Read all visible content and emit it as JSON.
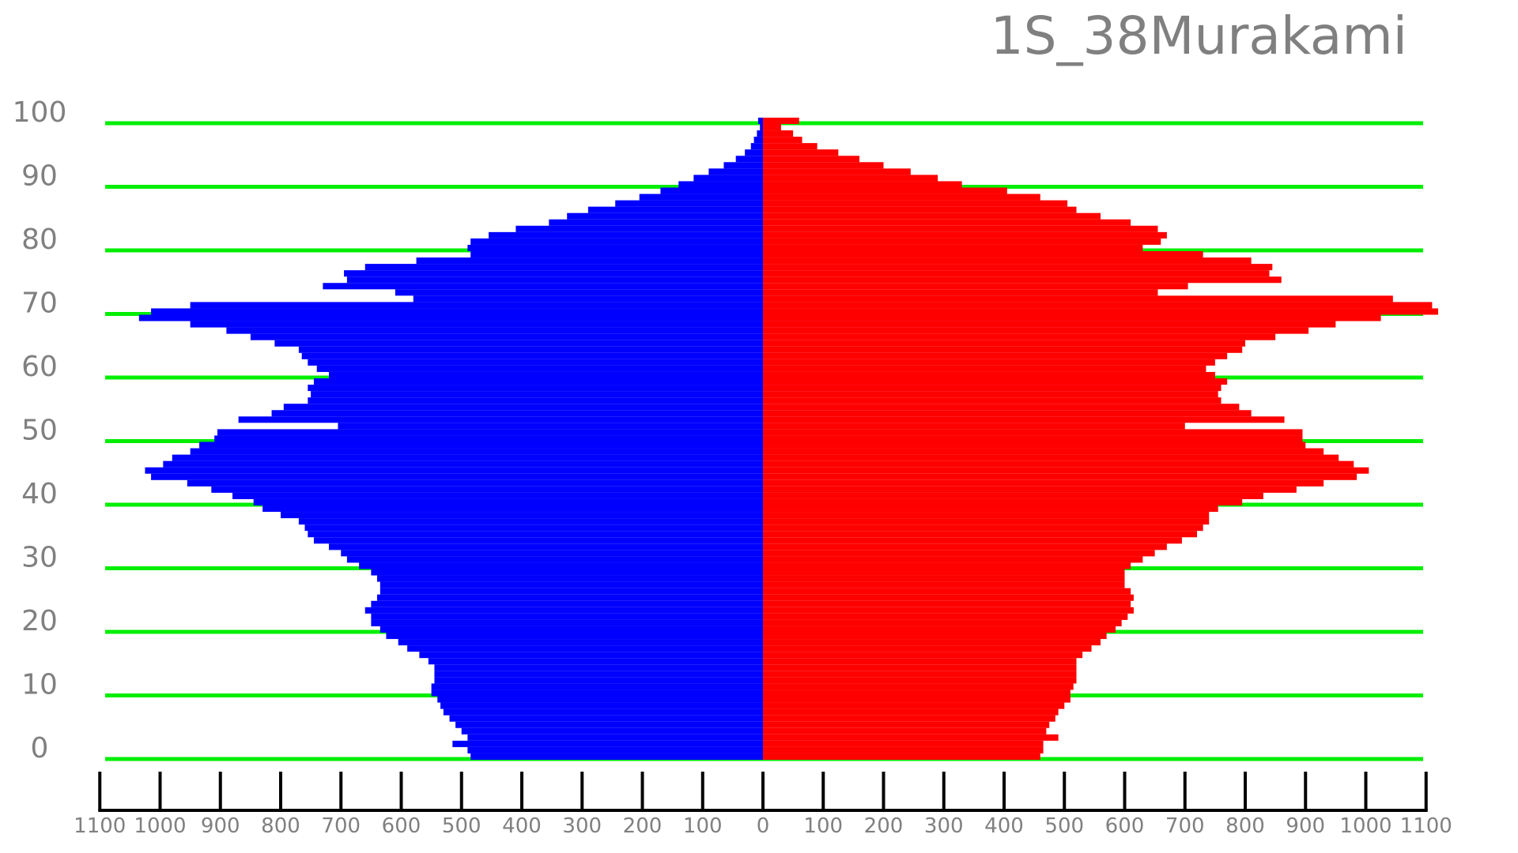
{
  "chart_data": {
    "type": "bar",
    "orientation": "horizontal-pyramid",
    "title": "1S_38Murakami",
    "age_ticks": [
      "0",
      "10",
      "20",
      "30",
      "40",
      "50",
      "60",
      "70",
      "80",
      "90",
      "100"
    ],
    "x_tick_labels": [
      "1100",
      "1000",
      "900",
      "800",
      "700",
      "600",
      "500",
      "400",
      "300",
      "200",
      "100",
      "0",
      "100",
      "200",
      "300",
      "400",
      "500",
      "600",
      "700",
      "800",
      "900",
      "1000",
      "1100"
    ],
    "xlim": [
      -1100,
      1100
    ],
    "ylim": [
      0,
      100
    ],
    "grid": "horizontal lines every 10 years",
    "colors": {
      "left": "#0000ff",
      "right": "#ff0000",
      "grid": "#00ee00",
      "text": "#808080",
      "axis": "#000000"
    },
    "ages": [
      0,
      1,
      2,
      3,
      4,
      5,
      6,
      7,
      8,
      9,
      10,
      11,
      12,
      13,
      14,
      15,
      16,
      17,
      18,
      19,
      20,
      21,
      22,
      23,
      24,
      25,
      26,
      27,
      28,
      29,
      30,
      31,
      32,
      33,
      34,
      35,
      36,
      37,
      38,
      39,
      40,
      41,
      42,
      43,
      44,
      45,
      46,
      47,
      48,
      49,
      50,
      51,
      52,
      53,
      54,
      55,
      56,
      57,
      58,
      59,
      60,
      61,
      62,
      63,
      64,
      65,
      66,
      67,
      68,
      69,
      70,
      71,
      72,
      73,
      74,
      75,
      76,
      77,
      78,
      79,
      80,
      81,
      82,
      83,
      84,
      85,
      86,
      87,
      88,
      89,
      90,
      91,
      92,
      93,
      94,
      95,
      96,
      97,
      98,
      99,
      100
    ],
    "series": [
      {
        "side": "left",
        "values": [
          485,
          490,
          515,
          490,
          500,
          510,
          520,
          530,
          535,
          540,
          550,
          550,
          545,
          545,
          545,
          555,
          570,
          590,
          605,
          625,
          635,
          650,
          650,
          660,
          650,
          640,
          635,
          635,
          640,
          650,
          670,
          690,
          700,
          720,
          745,
          755,
          760,
          770,
          800,
          830,
          845,
          880,
          915,
          955,
          1015,
          1025,
          995,
          980,
          950,
          935,
          910,
          905,
          705,
          870,
          815,
          795,
          755,
          750,
          755,
          745,
          720,
          740,
          755,
          765,
          770,
          810,
          850,
          890,
          950,
          1035,
          1015,
          950,
          580,
          610,
          730,
          690,
          695,
          660,
          575,
          485,
          490,
          485,
          455,
          410,
          355,
          325,
          290,
          245,
          205,
          170,
          140,
          115,
          90,
          65,
          45,
          30,
          20,
          15,
          10,
          5,
          8
        ]
      },
      {
        "side": "right",
        "values": [
          460,
          465,
          465,
          490,
          470,
          475,
          485,
          490,
          500,
          510,
          510,
          515,
          520,
          520,
          520,
          520,
          530,
          545,
          560,
          570,
          585,
          595,
          605,
          615,
          610,
          615,
          610,
          600,
          600,
          600,
          610,
          630,
          650,
          670,
          695,
          720,
          730,
          740,
          740,
          755,
          795,
          830,
          885,
          930,
          985,
          1005,
          980,
          955,
          930,
          900,
          895,
          895,
          700,
          865,
          810,
          790,
          760,
          755,
          760,
          770,
          750,
          735,
          750,
          770,
          795,
          800,
          850,
          905,
          950,
          1025,
          1120,
          1110,
          1045,
          655,
          705,
          860,
          840,
          845,
          810,
          730,
          630,
          660,
          670,
          655,
          610,
          560,
          520,
          505,
          460,
          405,
          330,
          290,
          245,
          200,
          160,
          125,
          90,
          65,
          50,
          30,
          60
        ]
      }
    ]
  }
}
